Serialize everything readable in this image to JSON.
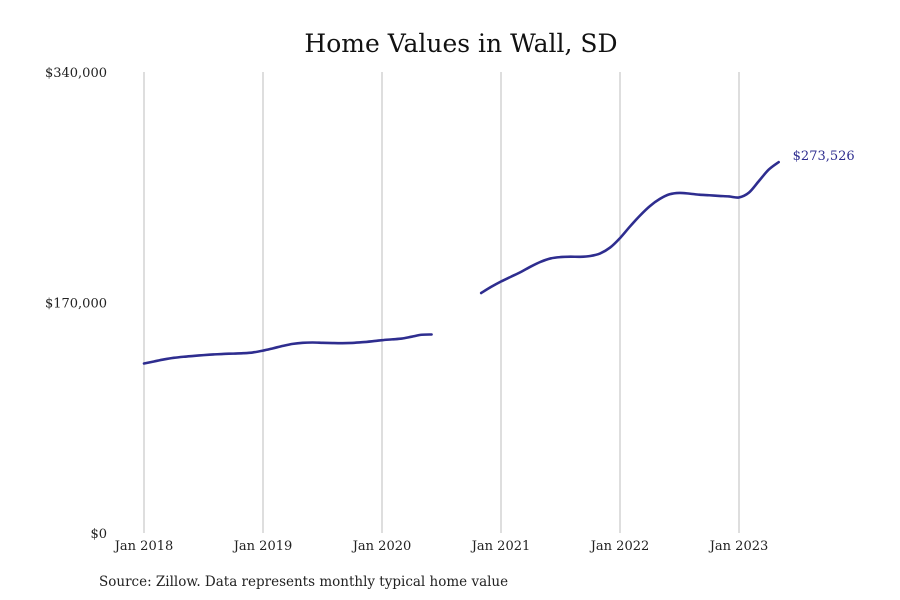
{
  "chart_data": {
    "type": "line",
    "title": "Home Values in Wall, SD",
    "xlabel": "",
    "ylabel": "",
    "ylim": [
      0,
      340000
    ],
    "y_ticks": [
      {
        "value": 0,
        "label": "$0"
      },
      {
        "value": 170000,
        "label": "$170,000"
      },
      {
        "value": 340000,
        "label": "$340,000"
      }
    ],
    "x_ticks": [
      {
        "value": "2018-01",
        "label": "Jan 2018"
      },
      {
        "value": "2019-01",
        "label": "Jan 2019"
      },
      {
        "value": "2020-01",
        "label": "Jan 2020"
      },
      {
        "value": "2021-01",
        "label": "Jan 2021"
      },
      {
        "value": "2022-01",
        "label": "Jan 2022"
      },
      {
        "value": "2023-01",
        "label": "Jan 2023"
      }
    ],
    "xlim": [
      "2018-01",
      "2023-12"
    ],
    "grid": "vertical",
    "legend": "none",
    "series": [
      {
        "color": "#2e2d8f",
        "segments": [
          {
            "x": [
              "2018-01",
              "2018-02",
              "2018-03",
              "2018-04",
              "2018-05",
              "2018-06",
              "2018-07",
              "2018-08",
              "2018-09",
              "2018-10",
              "2018-11",
              "2018-12",
              "2019-01",
              "2019-02",
              "2019-03",
              "2019-04",
              "2019-05",
              "2019-06",
              "2019-07",
              "2019-08",
              "2019-09",
              "2019-10",
              "2019-11",
              "2019-12",
              "2020-01",
              "2020-02",
              "2020-03",
              "2020-04",
              "2020-05",
              "2020-06"
            ],
            "y": [
              125000,
              126500,
              128000,
              129200,
              130000,
              130600,
              131200,
              131700,
              132100,
              132300,
              132600,
              133200,
              134500,
              136200,
              138000,
              139500,
              140300,
              140500,
              140300,
              140100,
              140000,
              140200,
              140700,
              141400,
              142200,
              142800,
              143400,
              144800,
              146200,
              146400
            ]
          },
          {
            "x": [
              "2020-11",
              "2020-12",
              "2021-01",
              "2021-02",
              "2021-03",
              "2021-04",
              "2021-05",
              "2021-06",
              "2021-07",
              "2021-08",
              "2021-09",
              "2021-10",
              "2021-11",
              "2021-12",
              "2022-01",
              "2022-02",
              "2022-03",
              "2022-04",
              "2022-05",
              "2022-06",
              "2022-07",
              "2022-08",
              "2022-09",
              "2022-10",
              "2022-11",
              "2022-12",
              "2023-01",
              "2023-02",
              "2023-03",
              "2023-04",
              "2023-05"
            ],
            "y": [
              177000,
              181500,
              185500,
              189000,
              192500,
              196500,
              200000,
              202500,
              203500,
              203800,
              203700,
              204300,
              206200,
              210500,
              217500,
              226000,
              234000,
              241000,
              246300,
              249800,
              250800,
              250300,
              249500,
              249100,
              248600,
              248200,
              247500,
              251000,
              259500,
              268000,
              273526
            ]
          }
        ]
      }
    ],
    "end_label": "$273,526"
  },
  "source_note": "Source: Zillow. Data represents monthly typical home value"
}
